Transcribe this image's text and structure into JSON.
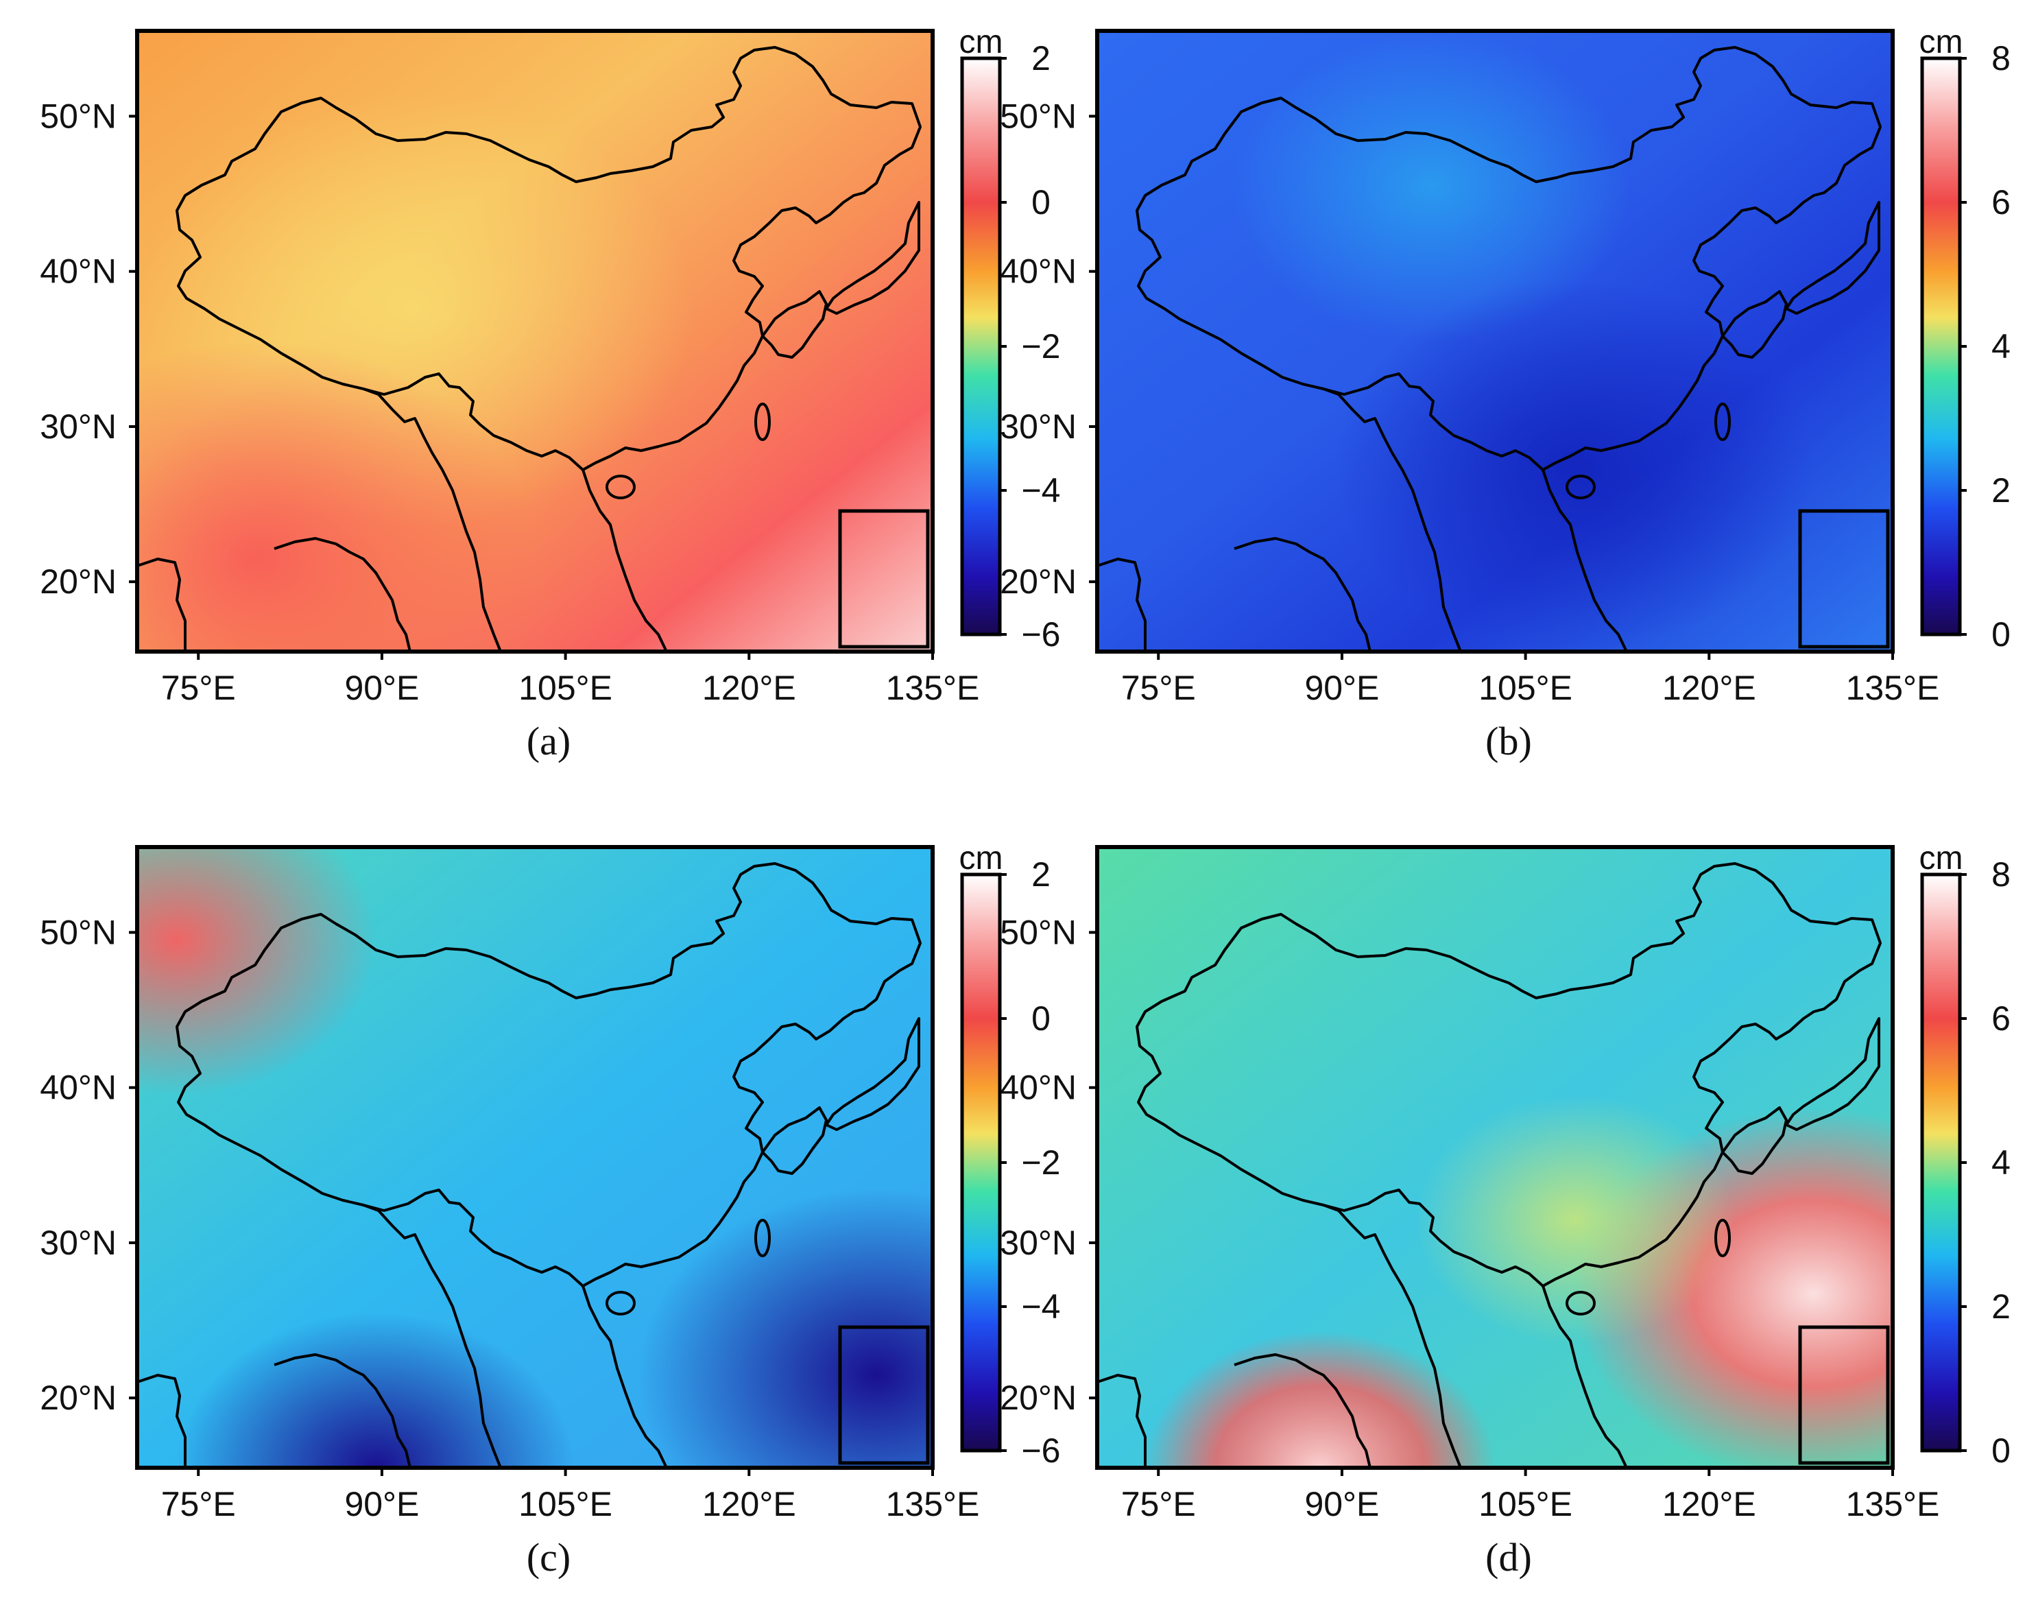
{
  "figure": {
    "colorbar_unit": "cm",
    "lat_ticks": [
      {
        "value": 50,
        "label": "50°N"
      },
      {
        "value": 40,
        "label": "40°N"
      },
      {
        "value": 30,
        "label": "30°N"
      },
      {
        "value": 20,
        "label": "20°N"
      }
    ],
    "lon_ticks": [
      {
        "value": 75,
        "label": "75°E"
      },
      {
        "value": 90,
        "label": "90°E"
      },
      {
        "value": 105,
        "label": "105°E"
      },
      {
        "value": 120,
        "label": "120°E"
      },
      {
        "value": 135,
        "label": "135°E"
      }
    ],
    "extent": {
      "lon": [
        70,
        135
      ],
      "lat": [
        15.5,
        55.5
      ]
    },
    "panels": [
      {
        "id": "a",
        "label": "(a)",
        "colorbar_ticks": [
          "2",
          "0",
          "−2",
          "−4",
          "−6"
        ],
        "colorbar_range": [
          -6,
          2
        ],
        "colorscale": [
          "#ffffff",
          "#f85858",
          "#f8a030",
          "#f6e060",
          "#48e0a0",
          "#20c8e8",
          "#2060f0",
          "#2020b0",
          "#1a0a5a"
        ]
      },
      {
        "id": "b",
        "label": "(b)",
        "colorbar_ticks": [
          "8",
          "6",
          "4",
          "2",
          "0"
        ],
        "colorbar_range": [
          0,
          8
        ],
        "colorscale": [
          "#ffffff",
          "#f85858",
          "#f8a030",
          "#f6e060",
          "#48e0a0",
          "#20c8e8",
          "#2060f0",
          "#2020b0",
          "#1a0a5a"
        ]
      },
      {
        "id": "c",
        "label": "(c)",
        "colorbar_ticks": [
          "2",
          "0",
          "−2",
          "−4",
          "−6"
        ],
        "colorbar_range": [
          -6,
          2
        ],
        "colorscale": [
          "#ffffff",
          "#f85858",
          "#f8a030",
          "#f6e060",
          "#48e0a0",
          "#20c8e8",
          "#2060f0",
          "#2020b0",
          "#1a0a5a"
        ]
      },
      {
        "id": "d",
        "label": "(d)",
        "colorbar_ticks": [
          "8",
          "6",
          "4",
          "2",
          "0"
        ],
        "colorbar_range": [
          0,
          8
        ],
        "colorscale": [
          "#ffffff",
          "#f85858",
          "#f8a030",
          "#f6e060",
          "#48e0a0",
          "#20c8e8",
          "#2060f0",
          "#2020b0",
          "#1a0a5a"
        ]
      }
    ]
  }
}
